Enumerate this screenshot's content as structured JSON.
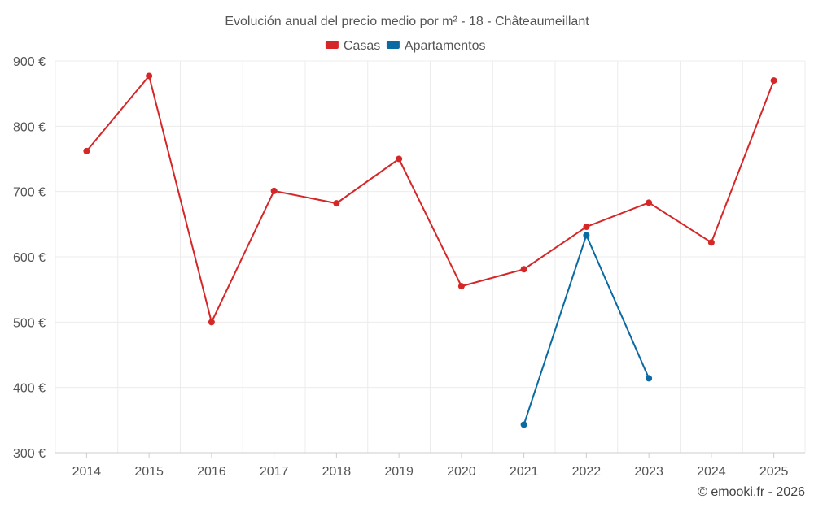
{
  "chart_data": {
    "type": "line",
    "title": "Evolución anual del precio medio por m² - 18 - Châteaumeillant",
    "categories": [
      "2014",
      "2015",
      "2016",
      "2017",
      "2018",
      "2019",
      "2020",
      "2021",
      "2022",
      "2023",
      "2024",
      "2025"
    ],
    "series": [
      {
        "name": "Casas",
        "color": "#d62728",
        "values": [
          762,
          877,
          500,
          701,
          682,
          750,
          555,
          581,
          646,
          683,
          622,
          870
        ]
      },
      {
        "name": "Apartamentos",
        "color": "#0b6aa2",
        "values": [
          null,
          null,
          null,
          null,
          null,
          null,
          null,
          343,
          633,
          414,
          null,
          null
        ]
      }
    ],
    "ylim": [
      300,
      900
    ],
    "yticks": [
      300,
      400,
      500,
      600,
      700,
      800,
      900
    ],
    "ytick_labels": [
      "300 €",
      "400 €",
      "500 €",
      "600 €",
      "700 €",
      "800 €",
      "900 €"
    ],
    "xlabel": "",
    "ylabel": "",
    "grid": true,
    "legend_position": "top-center"
  },
  "credit": "© emooki.fr - 2026"
}
